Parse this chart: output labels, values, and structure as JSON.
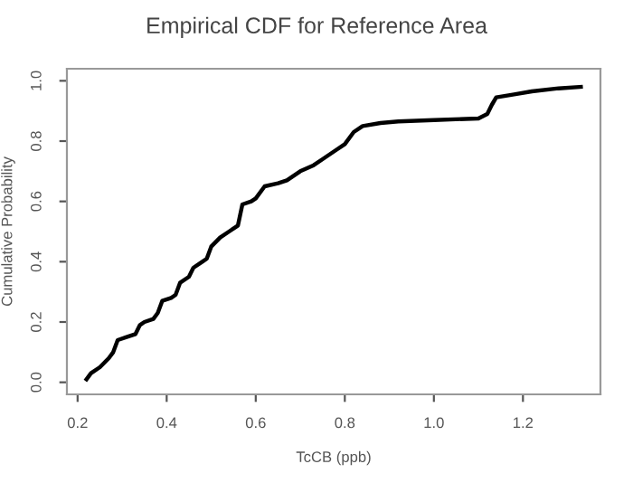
{
  "chart_data": {
    "type": "line",
    "title": "Empirical CDF for Reference Area",
    "xlabel": "TcCB (ppb)",
    "ylabel": "Cumulative Probability",
    "x": [
      0.22,
      0.23,
      0.25,
      0.27,
      0.28,
      0.29,
      0.31,
      0.33,
      0.34,
      0.35,
      0.37,
      0.38,
      0.39,
      0.41,
      0.42,
      0.43,
      0.45,
      0.46,
      0.48,
      0.49,
      0.5,
      0.52,
      0.54,
      0.56,
      0.57,
      0.59,
      0.6,
      0.62,
      0.65,
      0.67,
      0.7,
      0.73,
      0.75,
      0.78,
      0.8,
      0.82,
      0.84,
      0.88,
      0.92,
      1.0,
      1.1,
      1.12,
      1.13,
      1.14,
      1.18,
      1.22,
      1.28,
      1.33
    ],
    "series": [
      {
        "color": "#000000",
        "values": [
          0.01,
          0.03,
          0.05,
          0.08,
          0.1,
          0.14,
          0.15,
          0.16,
          0.19,
          0.2,
          0.21,
          0.23,
          0.27,
          0.28,
          0.29,
          0.33,
          0.35,
          0.38,
          0.4,
          0.41,
          0.45,
          0.48,
          0.5,
          0.52,
          0.59,
          0.6,
          0.61,
          0.65,
          0.66,
          0.67,
          0.7,
          0.72,
          0.74,
          0.77,
          0.79,
          0.83,
          0.85,
          0.86,
          0.865,
          0.87,
          0.875,
          0.89,
          0.92,
          0.945,
          0.955,
          0.965,
          0.975,
          0.98
        ]
      }
    ],
    "xlim": [
      0.176,
      1.374
    ],
    "ylim": [
      -0.04,
      1.04
    ],
    "xticks": [
      {
        "value": 0.2,
        "label": "0.2"
      },
      {
        "value": 0.4,
        "label": "0.4"
      },
      {
        "value": 0.6,
        "label": "0.6"
      },
      {
        "value": 0.8,
        "label": "0.8"
      },
      {
        "value": 1.0,
        "label": "1.0"
      },
      {
        "value": 1.2,
        "label": "1.2"
      }
    ],
    "yticks": [
      {
        "value": 0.0,
        "label": "0.0"
      },
      {
        "value": 0.2,
        "label": "0.2"
      },
      {
        "value": 0.4,
        "label": "0.4"
      },
      {
        "value": 0.6,
        "label": "0.6"
      },
      {
        "value": 0.8,
        "label": "0.8"
      },
      {
        "value": 1.0,
        "label": "1.0"
      }
    ],
    "grid": false,
    "legend": false,
    "marker": "none",
    "line_style": "solid"
  }
}
